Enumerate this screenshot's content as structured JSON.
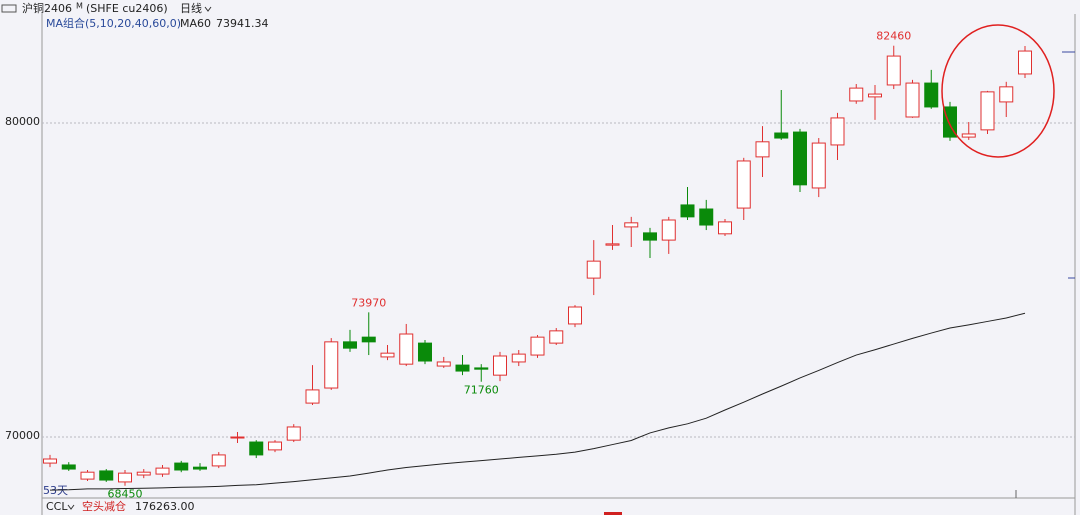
{
  "chart_data": {
    "type": "candlestick",
    "symbol": "沪铜2406",
    "symbol_mark": "M",
    "exchange_code": "(SHFE cu2406)",
    "period": "日线",
    "ma_group": "MA组合(5,10,20,40,60,0)",
    "ma_name": "MA60",
    "day_count": "53天",
    "footer": {
      "indicator": "CCL",
      "signal": "空头减仓",
      "amount": "176263.00"
    },
    "up_color": "#e03030",
    "down_color": "#0a8a0a",
    "ma_color": "#222222",
    "open": [
      69170,
      69110,
      68660,
      68920,
      68570,
      68790,
      68820,
      69170,
      69040,
      69080,
      69970,
      69840,
      69590,
      69900,
      71080,
      71560,
      73030,
      73180,
      72550,
      72320,
      72990,
      72260,
      72290,
      72200,
      71970,
      72390,
      72610,
      72990,
      73600,
      75060,
      76110,
      76690,
      76500,
      76270,
      77390,
      77260,
      76470,
      77290,
      78920,
      79680,
      79710,
      77930,
      79300,
      80700,
      80830,
      81210,
      80190,
      81270,
      80510,
      79550,
      79780,
      80670,
      81560
    ],
    "close": [
      69300,
      68980,
      68880,
      68630,
      68850,
      68880,
      69010,
      68950,
      68980,
      69430,
      70000,
      69430,
      69840,
      70320,
      71500,
      73030,
      72830,
      73030,
      72670,
      73280,
      72420,
      72390,
      72100,
      72160,
      72580,
      72640,
      73180,
      73380,
      74140,
      75600,
      76150,
      76820,
      76270,
      76910,
      77010,
      76750,
      76850,
      78790,
      79400,
      79520,
      78030,
      79360,
      80160,
      81110,
      80920,
      82130,
      81270,
      80510,
      79550,
      79650,
      80990,
      81150,
      82290
    ],
    "high": [
      69430,
      69200,
      68950,
      68980,
      68950,
      68980,
      69110,
      69240,
      69170,
      69520,
      70160,
      69900,
      69900,
      70410,
      72290,
      73150,
      73410,
      73970,
      72930,
      73600,
      73090,
      72550,
      72610,
      72320,
      72710,
      72770,
      73250,
      73470,
      74200,
      76270,
      76750,
      77010,
      76660,
      77010,
      77960,
      77550,
      76940,
      78890,
      79900,
      81050,
      79810,
      79520,
      80320,
      81240,
      81210,
      82460,
      81370,
      81690,
      80670,
      80030,
      81020,
      81310,
      82450
    ],
    "low": [
      69040,
      68920,
      68600,
      68570,
      68450,
      68690,
      68730,
      68880,
      68920,
      69010,
      69810,
      69330,
      69520,
      69840,
      71020,
      71500,
      72710,
      72610,
      72450,
      72260,
      72320,
      72200,
      71970,
      71760,
      71780,
      72260,
      72520,
      72930,
      73500,
      74520,
      75960,
      76050,
      75700,
      75830,
      76910,
      76590,
      76400,
      76910,
      78280,
      79460,
      77800,
      77640,
      78820,
      80610,
      80100,
      81080,
      80160,
      80450,
      79430,
      79460,
      79650,
      80190,
      81430
    ],
    "ma60": [
      68310,
      68320,
      68350,
      68350,
      68360,
      68370,
      68380,
      68400,
      68410,
      68430,
      68460,
      68480,
      68530,
      68580,
      68640,
      68700,
      68760,
      68850,
      68950,
      69030,
      69090,
      69150,
      69200,
      69250,
      69300,
      69350,
      69400,
      69450,
      69520,
      69630,
      69760,
      69890,
      70130,
      70290,
      70420,
      70600,
      70860,
      71110,
      71370,
      71620,
      71880,
      72120,
      72370,
      72610,
      72780,
      72960,
      73140,
      73310,
      73470,
      73570,
      73680,
      73790,
      73941.34
    ],
    "labeled_highs": [
      17,
      45
    ],
    "labeled_lows": [
      4,
      23
    ],
    "ylim": [
      68090,
      82960
    ],
    "yticks": [
      70000,
      80000
    ],
    "grid": true
  }
}
